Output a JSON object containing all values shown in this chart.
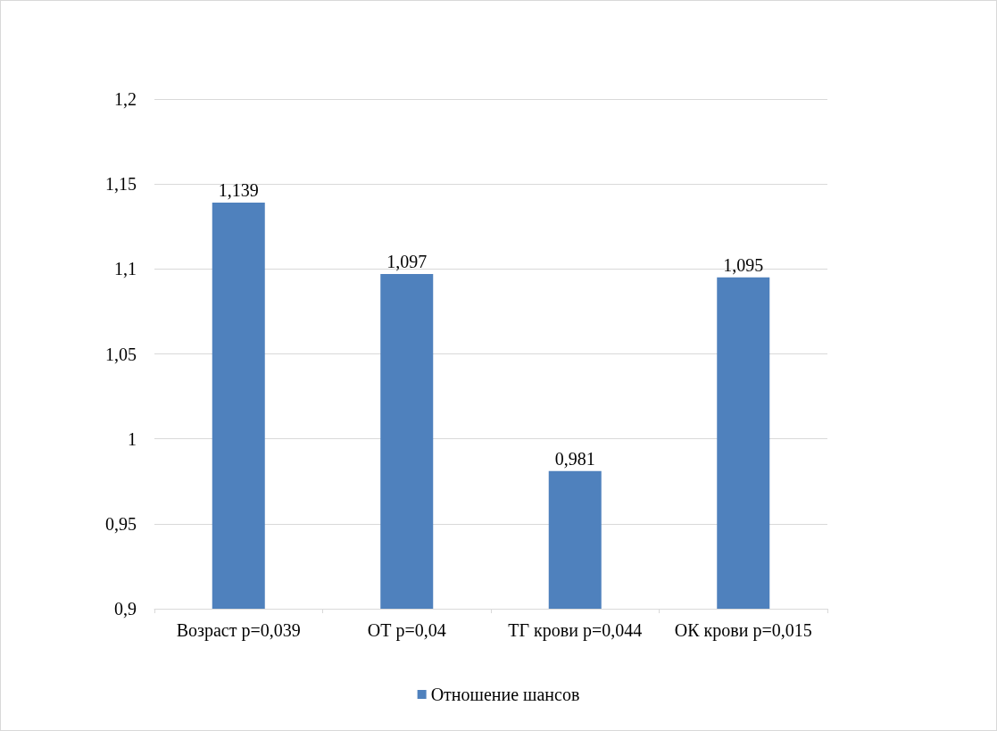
{
  "chart_data": {
    "type": "bar",
    "categories": [
      "Возраст p=0,039",
      "ОТ p=0,04",
      "ТГ крови p=0,044",
      "ОК крови p=0,015"
    ],
    "series": [
      {
        "name": "Отношение шансов",
        "color": "#4f81bd",
        "values": [
          1.139,
          1.097,
          0.981,
          1.095
        ],
        "value_labels": [
          "1,139",
          "1,097",
          "0,981",
          "1,095"
        ]
      }
    ],
    "ylim": [
      0.9,
      1.2
    ],
    "yticks": [
      {
        "value": 0.9,
        "label": "0,9"
      },
      {
        "value": 0.95,
        "label": "0,95"
      },
      {
        "value": 1,
        "label": "1"
      },
      {
        "value": 1.05,
        "label": "1,05"
      },
      {
        "value": 1.1,
        "label": "1,1"
      },
      {
        "value": 1.15,
        "label": "1,15"
      },
      {
        "value": 1.2,
        "label": "1,2"
      }
    ],
    "grid": "y",
    "legend": "bottom"
  }
}
